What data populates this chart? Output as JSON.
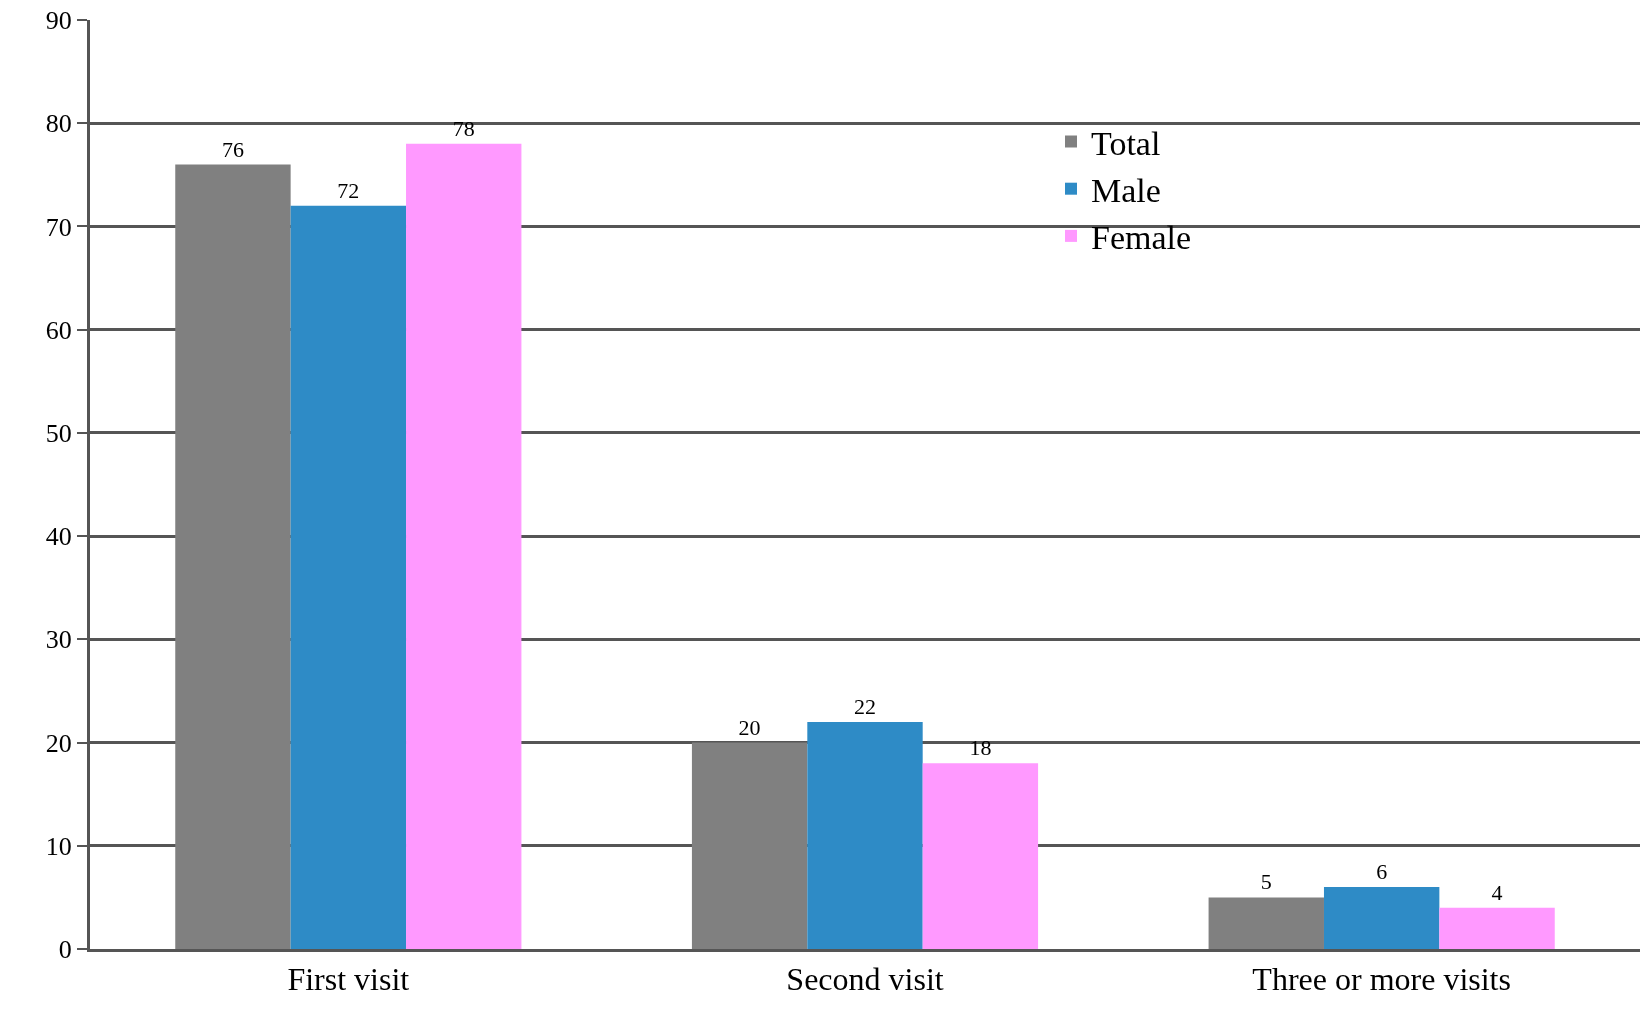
{
  "chart_data": {
    "type": "bar",
    "categories": [
      "First visit",
      "Second visit",
      "Three or more visits"
    ],
    "series": [
      {
        "name": "Total",
        "color": "#808080",
        "values": [
          76,
          20,
          5
        ]
      },
      {
        "name": "Male",
        "color": "#2e8bc6",
        "values": [
          72,
          22,
          6
        ]
      },
      {
        "name": "Female",
        "color": "#ff99ff",
        "values": [
          78,
          18,
          4
        ]
      }
    ],
    "ylim": [
      0,
      90
    ],
    "yticks": [
      0,
      10,
      20,
      30,
      40,
      50,
      60,
      70,
      80,
      90
    ],
    "grid": "y",
    "legend": "top right",
    "data_labels": true
  }
}
